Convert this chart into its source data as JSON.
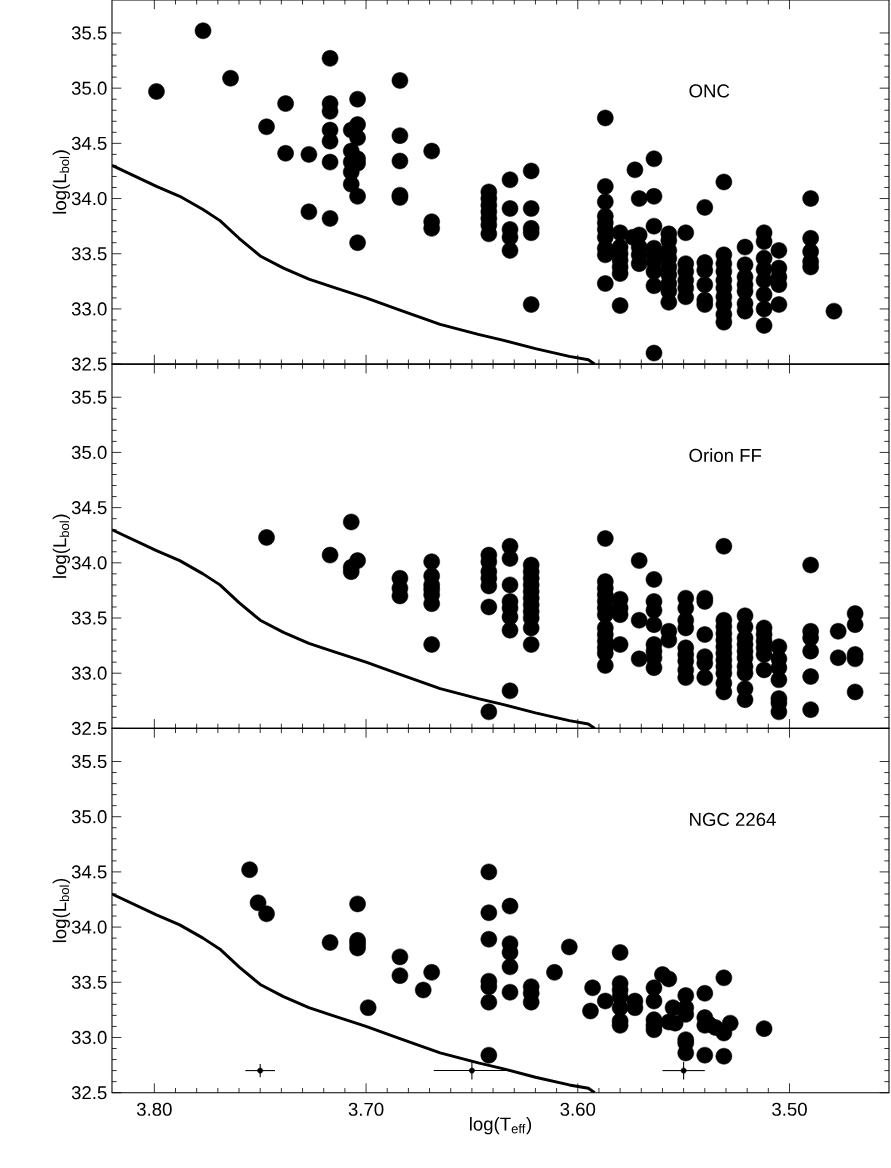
{
  "chart_data": [
    {
      "type": "scatter",
      "ylabel": "log(L$_{bol}$)",
      "annotations": [
        "ONC"
      ],
      "xlim": [
        3.82,
        3.453
      ],
      "ylim": [
        32.5,
        35.8
      ],
      "xticks": [
        {
          "value": 3.8,
          "label": null
        },
        {
          "value": 3.7,
          "label": null
        },
        {
          "value": 3.6,
          "label": null
        },
        {
          "value": 3.5,
          "label": null
        }
      ],
      "yticks": [
        32.5,
        {
          "value": 33,
          "label": "33.0"
        },
        33.5,
        {
          "value": 34,
          "label": "34.0"
        },
        34.5,
        {
          "value": 35,
          "label": "35.0"
        },
        35.5
      ],
      "tick_labels": "y",
      "series": [
        {
          "color": "#000000",
          "marker": "circle",
          "x": [
            3.799,
            3.777,
            3.764,
            3.747,
            3.738,
            3.738,
            3.727,
            3.727,
            3.717,
            3.717,
            3.717,
            3.717,
            3.717,
            3.717,
            3.717,
            3.707,
            3.707,
            3.707,
            3.707,
            3.707,
            3.704,
            3.704,
            3.704,
            3.704,
            3.704,
            3.704,
            3.704,
            3.684,
            3.684,
            3.684,
            3.684,
            3.684,
            3.669,
            3.669,
            3.669,
            3.642,
            3.642,
            3.642,
            3.642,
            3.642,
            3.642,
            3.642,
            3.632,
            3.632,
            3.632,
            3.632,
            3.632,
            3.622,
            3.622,
            3.622,
            3.622,
            3.622,
            3.587,
            3.587,
            3.587,
            3.587,
            3.587,
            3.587,
            3.587,
            3.587,
            3.587,
            3.587,
            3.58,
            3.58,
            3.58,
            3.58,
            3.58,
            3.58,
            3.58,
            3.574,
            3.573,
            3.571,
            3.571,
            3.571,
            3.571,
            3.571,
            3.564,
            3.564,
            3.564,
            3.564,
            3.564,
            3.564,
            3.564,
            3.564,
            3.564,
            3.557,
            3.557,
            3.557,
            3.557,
            3.557,
            3.557,
            3.557,
            3.557,
            3.557,
            3.549,
            3.549,
            3.549,
            3.549,
            3.549,
            3.549,
            3.54,
            3.54,
            3.54,
            3.54,
            3.54,
            3.54,
            3.531,
            3.531,
            3.531,
            3.531,
            3.531,
            3.531,
            3.531,
            3.531,
            3.531,
            3.531,
            3.521,
            3.521,
            3.521,
            3.521,
            3.521,
            3.521,
            3.521,
            3.512,
            3.512,
            3.512,
            3.512,
            3.512,
            3.512,
            3.512,
            3.512,
            3.505,
            3.505,
            3.505,
            3.505,
            3.505,
            3.49,
            3.49,
            3.49,
            3.49,
            3.49,
            3.479
          ],
          "values": [
            34.97,
            35.52,
            35.09,
            34.65,
            34.86,
            34.41,
            34.4,
            33.88,
            35.27,
            34.86,
            34.79,
            34.62,
            34.52,
            34.33,
            33.82,
            34.62,
            34.43,
            34.33,
            34.24,
            34.13,
            34.9,
            34.67,
            34.55,
            34.36,
            34.32,
            34.02,
            33.6,
            35.07,
            34.57,
            34.34,
            34.03,
            34.01,
            34.43,
            33.79,
            33.73,
            34.06,
            34.0,
            33.94,
            33.88,
            33.82,
            33.76,
            33.68,
            34.17,
            33.91,
            33.72,
            33.65,
            33.53,
            34.25,
            33.91,
            33.73,
            33.69,
            33.04,
            34.73,
            34.11,
            33.97,
            33.84,
            33.78,
            33.72,
            33.65,
            33.55,
            33.49,
            33.23,
            33.69,
            33.56,
            33.5,
            33.44,
            33.38,
            33.32,
            33.03,
            33.65,
            34.26,
            34.0,
            33.67,
            33.56,
            33.49,
            33.41,
            34.36,
            34.02,
            33.75,
            33.55,
            33.49,
            33.43,
            33.34,
            33.21,
            32.6,
            33.68,
            33.62,
            33.53,
            33.46,
            33.38,
            33.31,
            33.23,
            33.16,
            33.06,
            33.69,
            33.41,
            33.34,
            33.26,
            33.19,
            33.11,
            33.92,
            33.42,
            33.35,
            33.22,
            33.08,
            33.04,
            34.15,
            33.49,
            33.41,
            33.34,
            33.26,
            33.19,
            33.11,
            33.04,
            32.95,
            32.88,
            33.56,
            33.4,
            33.29,
            33.22,
            33.16,
            33.05,
            32.98,
            33.69,
            33.61,
            33.46,
            33.36,
            33.26,
            33.13,
            33.0,
            32.85,
            33.53,
            33.37,
            33.29,
            33.22,
            33.04,
            34.0,
            33.64,
            33.52,
            33.43,
            33.38,
            32.98
          ]
        },
        {
          "type": "line",
          "color": "#000000",
          "marker": "none",
          "line_style": "solid",
          "x": [
            3.82,
            3.799,
            3.788,
            3.777,
            3.769,
            3.76,
            3.75,
            3.739,
            3.727,
            3.716,
            3.7,
            3.684,
            3.665,
            3.647,
            3.636,
            3.62,
            3.604,
            3.595,
            3.592
          ],
          "values": [
            34.3,
            34.11,
            34.02,
            33.9,
            33.8,
            33.64,
            33.48,
            33.37,
            33.27,
            33.2,
            33.1,
            32.99,
            32.86,
            32.77,
            32.72,
            32.64,
            32.57,
            32.54,
            32.5
          ]
        }
      ]
    },
    {
      "type": "scatter",
      "ylabel": "log(L$_{bol}$)",
      "annotations": [
        "Orion FF"
      ],
      "xlim": [
        3.82,
        3.453
      ],
      "ylim": [
        32.5,
        35.8
      ],
      "xticks": [
        {
          "value": 3.8,
          "label": null
        },
        {
          "value": 3.7,
          "label": null
        },
        {
          "value": 3.6,
          "label": null
        },
        {
          "value": 3.5,
          "label": null
        }
      ],
      "yticks": [
        32.5,
        {
          "value": 33,
          "label": "33.0"
        },
        33.5,
        {
          "value": 34,
          "label": "34.0"
        },
        34.5,
        {
          "value": 35,
          "label": "35.0"
        },
        35.5
      ],
      "tick_labels": "y",
      "series": [
        {
          "color": "#000000",
          "marker": "circle",
          "x": [
            3.747,
            3.717,
            3.707,
            3.707,
            3.707,
            3.704,
            3.684,
            3.684,
            3.684,
            3.669,
            3.669,
            3.669,
            3.669,
            3.669,
            3.669,
            3.669,
            3.642,
            3.642,
            3.642,
            3.642,
            3.642,
            3.642,
            3.642,
            3.632,
            3.632,
            3.632,
            3.632,
            3.632,
            3.632,
            3.632,
            3.632,
            3.622,
            3.622,
            3.622,
            3.622,
            3.622,
            3.622,
            3.622,
            3.622,
            3.622,
            3.622,
            3.622,
            3.587,
            3.587,
            3.587,
            3.587,
            3.587,
            3.587,
            3.587,
            3.587,
            3.587,
            3.587,
            3.587,
            3.587,
            3.587,
            3.58,
            3.58,
            3.58,
            3.58,
            3.571,
            3.571,
            3.571,
            3.564,
            3.564,
            3.564,
            3.564,
            3.564,
            3.564,
            3.564,
            3.564,
            3.557,
            3.557,
            3.549,
            3.549,
            3.549,
            3.549,
            3.549,
            3.549,
            3.549,
            3.549,
            3.549,
            3.54,
            3.54,
            3.54,
            3.54,
            3.54,
            3.54,
            3.531,
            3.531,
            3.531,
            3.531,
            3.531,
            3.531,
            3.531,
            3.531,
            3.531,
            3.531,
            3.531,
            3.531,
            3.521,
            3.521,
            3.521,
            3.521,
            3.521,
            3.521,
            3.521,
            3.521,
            3.521,
            3.521,
            3.512,
            3.512,
            3.512,
            3.512,
            3.512,
            3.512,
            3.505,
            3.505,
            3.505,
            3.505,
            3.505,
            3.505,
            3.505,
            3.49,
            3.49,
            3.49,
            3.49,
            3.49,
            3.49,
            3.477,
            3.477,
            3.469,
            3.469,
            3.469,
            3.469,
            3.469
          ],
          "values": [
            34.23,
            34.07,
            34.37,
            33.96,
            33.92,
            34.02,
            33.86,
            33.77,
            33.7,
            34.01,
            33.88,
            33.8,
            33.76,
            33.71,
            33.63,
            33.26,
            34.07,
            34.01,
            33.92,
            33.86,
            33.79,
            33.6,
            32.65,
            34.15,
            34.04,
            33.8,
            33.65,
            33.59,
            33.51,
            33.39,
            32.84,
            33.98,
            33.92,
            33.86,
            33.8,
            33.74,
            33.68,
            33.62,
            33.56,
            33.5,
            33.41,
            33.26,
            34.22,
            33.83,
            33.77,
            33.71,
            33.65,
            33.59,
            33.53,
            33.41,
            33.35,
            33.29,
            33.23,
            33.18,
            33.07,
            33.67,
            33.59,
            33.53,
            33.26,
            34.02,
            33.48,
            33.13,
            33.85,
            33.65,
            33.57,
            33.44,
            33.26,
            33.2,
            33.14,
            33.05,
            33.38,
            33.3,
            33.68,
            33.59,
            33.48,
            33.41,
            33.23,
            33.17,
            33.11,
            33.03,
            32.96,
            33.68,
            33.65,
            33.35,
            33.15,
            33.09,
            32.96,
            34.15,
            33.48,
            33.42,
            33.36,
            33.3,
            33.24,
            33.18,
            33.12,
            33.06,
            33.0,
            32.91,
            32.83,
            33.52,
            33.42,
            33.32,
            33.26,
            33.2,
            33.14,
            33.06,
            33.0,
            32.86,
            32.76,
            33.41,
            33.35,
            33.29,
            33.23,
            33.17,
            33.03,
            33.24,
            33.13,
            33.05,
            32.94,
            32.77,
            32.73,
            32.65,
            33.98,
            33.38,
            33.32,
            33.2,
            32.97,
            32.67,
            33.38,
            33.14,
            33.54,
            33.44,
            33.17,
            33.13,
            32.83
          ]
        },
        {
          "type": "line",
          "color": "#000000",
          "marker": "none",
          "line_style": "solid",
          "x": [
            3.82,
            3.799,
            3.788,
            3.777,
            3.769,
            3.76,
            3.75,
            3.739,
            3.727,
            3.716,
            3.7,
            3.684,
            3.665,
            3.647,
            3.636,
            3.62,
            3.604,
            3.595,
            3.592
          ],
          "values": [
            34.3,
            34.11,
            34.02,
            33.9,
            33.8,
            33.64,
            33.48,
            33.37,
            33.27,
            33.2,
            33.1,
            32.99,
            32.86,
            32.77,
            32.72,
            32.64,
            32.57,
            32.54,
            32.5
          ]
        }
      ]
    },
    {
      "type": "scatter",
      "xlabel": "log(T$_{eff}$)",
      "ylabel": "log(L$_{bol}$)",
      "annotations": [
        "NGC 2264"
      ],
      "xlim": [
        3.82,
        3.453
      ],
      "ylim": [
        32.5,
        35.8
      ],
      "xticks": [
        {
          "value": 3.8,
          "label": "3.80"
        },
        {
          "value": 3.7,
          "label": "3.70"
        },
        {
          "value": 3.6,
          "label": "3.60"
        },
        {
          "value": 3.5,
          "label": "3.50"
        }
      ],
      "yticks": [
        32.5,
        {
          "value": 33,
          "label": "33.0"
        },
        33.5,
        {
          "value": 34,
          "label": "34.0"
        },
        34.5,
        {
          "value": 35,
          "label": "35.0"
        },
        35.5
      ],
      "series": [
        {
          "color": "#000000",
          "marker": "circle",
          "x": [
            3.755,
            3.751,
            3.747,
            3.717,
            3.704,
            3.704,
            3.704,
            3.704,
            3.699,
            3.684,
            3.684,
            3.673,
            3.669,
            3.642,
            3.642,
            3.642,
            3.642,
            3.642,
            3.642,
            3.642,
            3.632,
            3.632,
            3.632,
            3.632,
            3.632,
            3.622,
            3.622,
            3.622,
            3.611,
            3.604,
            3.594,
            3.593,
            3.587,
            3.58,
            3.58,
            3.58,
            3.58,
            3.58,
            3.58,
            3.58,
            3.573,
            3.573,
            3.564,
            3.564,
            3.564,
            3.564,
            3.564,
            3.56,
            3.557,
            3.555,
            3.557,
            3.554,
            3.549,
            3.549,
            3.549,
            3.549,
            3.549,
            3.549,
            3.54,
            3.54,
            3.54,
            3.54,
            3.538,
            3.535,
            3.531,
            3.531,
            3.531,
            3.528,
            3.512
          ],
          "values": [
            34.52,
            34.22,
            34.12,
            33.86,
            34.21,
            33.88,
            33.85,
            33.81,
            33.27,
            33.73,
            33.56,
            33.43,
            33.59,
            34.5,
            34.13,
            33.89,
            33.51,
            33.46,
            33.32,
            32.84,
            34.19,
            33.85,
            33.77,
            33.64,
            33.41,
            33.46,
            33.4,
            33.32,
            33.59,
            33.82,
            33.24,
            33.45,
            33.33,
            33.77,
            33.49,
            33.43,
            33.37,
            33.27,
            33.15,
            33.11,
            33.33,
            33.27,
            33.45,
            33.33,
            33.16,
            33.11,
            33.07,
            33.57,
            33.53,
            33.27,
            33.14,
            33.13,
            33.38,
            33.27,
            33.21,
            32.98,
            32.95,
            32.86,
            33.4,
            33.18,
            33.11,
            32.84,
            33.12,
            33.09,
            33.54,
            33.04,
            32.83,
            33.13,
            33.08
          ]
        },
        {
          "type": "line",
          "color": "#000000",
          "marker": "none",
          "line_style": "solid",
          "x": [
            3.82,
            3.799,
            3.788,
            3.777,
            3.769,
            3.76,
            3.75,
            3.739,
            3.727,
            3.716,
            3.7,
            3.684,
            3.665,
            3.647,
            3.636,
            3.62,
            3.604,
            3.595,
            3.592
          ],
          "values": [
            34.3,
            34.11,
            34.02,
            33.9,
            33.8,
            33.64,
            33.48,
            33.37,
            33.27,
            33.2,
            33.1,
            32.99,
            32.86,
            32.77,
            32.72,
            32.64,
            32.57,
            32.54,
            32.5
          ]
        },
        {
          "color": "#000000",
          "marker": "none",
          "x": [
            3.75,
            3.65,
            3.55
          ],
          "values": [
            32.7,
            32.7,
            32.7
          ],
          "errors": [
            0.06,
            0.08,
            0.08
          ],
          "xerrors": [
            0.007,
            0.018,
            0.01
          ]
        }
      ]
    }
  ]
}
